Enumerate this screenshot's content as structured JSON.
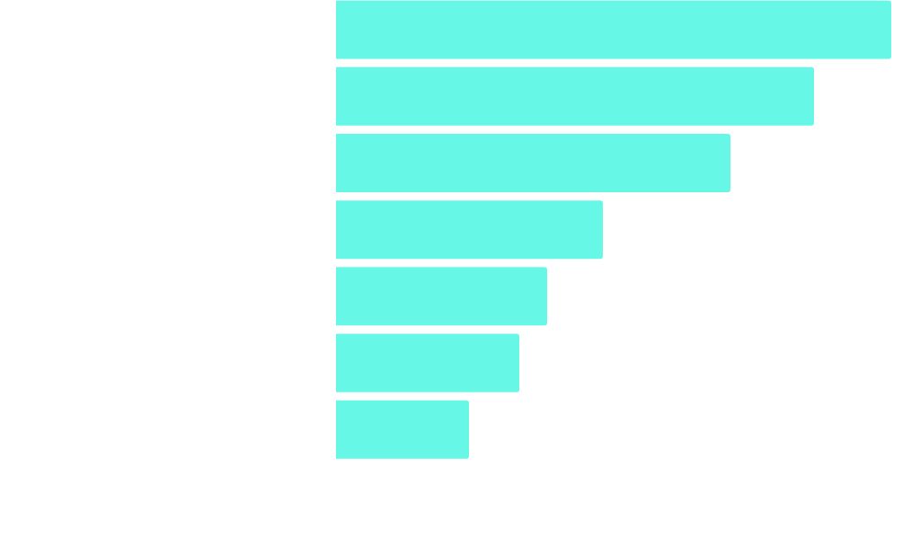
{
  "chart_data": {
    "type": "bar",
    "orientation": "horizontal",
    "categories": [
      null,
      null,
      null,
      null,
      null,
      null,
      null
    ],
    "values": [
      618,
      532,
      439,
      297,
      235,
      204,
      148
    ],
    "color": "#66f7e7",
    "xlim": [
      0,
      650
    ]
  }
}
